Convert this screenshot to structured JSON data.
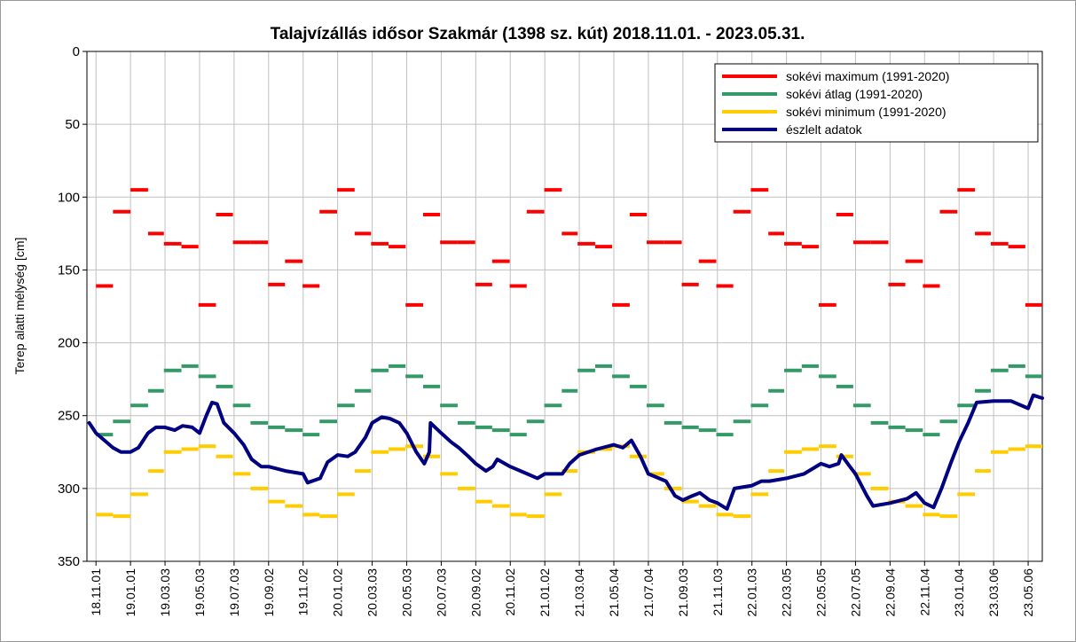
{
  "chart_data": {
    "type": "line",
    "title": "Talajvízállás idősor Szakmár (1398 sz. kút) 2018.11.01. - 2023.05.31.",
    "y_label": "Terep alatti mélység [cm]",
    "ylim": [
      0,
      350
    ],
    "yticks": [
      0,
      50,
      100,
      150,
      200,
      250,
      300,
      350
    ],
    "y_inverted": true,
    "xlim": [
      "18.10.16",
      "23.05.31"
    ],
    "xticks": [
      "18.11.01",
      "19.01.01",
      "19.03.03",
      "19.05.03",
      "19.07.03",
      "19.09.02",
      "19.11.02",
      "20.01.02",
      "20.03.03",
      "20.05.03",
      "20.07.03",
      "20.09.02",
      "20.11.02",
      "21.01.02",
      "21.03.04",
      "21.05.04",
      "21.07.04",
      "21.09.03",
      "21.11.03",
      "22.01.03",
      "22.03.05",
      "22.05.05",
      "22.07.05",
      "22.09.04",
      "22.11.04",
      "23.01.04",
      "23.03.06",
      "23.05.06"
    ],
    "grid": true,
    "legend": "top-right",
    "series": [
      {
        "name": "sokévi maximum (1991-2020)",
        "color": "#ff0000",
        "style": "step",
        "x": [
          "18.11.01",
          "18.12.01",
          "19.01.01",
          "19.02.01",
          "19.03.01",
          "19.04.01",
          "19.05.01",
          "19.06.01",
          "19.07.01",
          "19.08.01",
          "19.09.01",
          "19.10.01",
          "19.11.01",
          "19.12.01",
          "20.01.01",
          "20.02.01",
          "20.03.01",
          "20.04.01",
          "20.05.01",
          "20.06.01",
          "20.07.01",
          "20.08.01",
          "20.09.01",
          "20.10.01",
          "20.11.01",
          "20.12.01",
          "21.01.01",
          "21.02.01",
          "21.03.01",
          "21.04.01",
          "21.05.01",
          "21.06.01",
          "21.07.01",
          "21.08.01",
          "21.09.01",
          "21.10.01",
          "21.11.01",
          "21.12.01",
          "22.01.01",
          "22.02.01",
          "22.03.01",
          "22.04.01",
          "22.05.01",
          "22.06.01",
          "22.07.01",
          "22.08.01",
          "22.09.01",
          "22.10.01",
          "22.11.01",
          "22.12.01",
          "23.01.01",
          "23.02.01",
          "23.03.01",
          "23.04.01",
          "23.05.01"
        ],
        "values": [
          161,
          110,
          95,
          125,
          132,
          134,
          174,
          112,
          131,
          131,
          160,
          144,
          161,
          110,
          95,
          125,
          132,
          134,
          174,
          112,
          131,
          131,
          160,
          144,
          161,
          110,
          95,
          125,
          132,
          134,
          174,
          112,
          131,
          131,
          160,
          144,
          161,
          110,
          95,
          125,
          132,
          134,
          174,
          112,
          131,
          131,
          160,
          144,
          161,
          110,
          95,
          125,
          132,
          134,
          174
        ]
      },
      {
        "name": "sokévi átlag (1991-2020)",
        "color": "#339966",
        "style": "step",
        "x": [
          "18.11.01",
          "18.12.01",
          "19.01.01",
          "19.02.01",
          "19.03.01",
          "19.04.01",
          "19.05.01",
          "19.06.01",
          "19.07.01",
          "19.08.01",
          "19.09.01",
          "19.10.01",
          "19.11.01",
          "19.12.01",
          "20.01.01",
          "20.02.01",
          "20.03.01",
          "20.04.01",
          "20.05.01",
          "20.06.01",
          "20.07.01",
          "20.08.01",
          "20.09.01",
          "20.10.01",
          "20.11.01",
          "20.12.01",
          "21.01.01",
          "21.02.01",
          "21.03.01",
          "21.04.01",
          "21.05.01",
          "21.06.01",
          "21.07.01",
          "21.08.01",
          "21.09.01",
          "21.10.01",
          "21.11.01",
          "21.12.01",
          "22.01.01",
          "22.02.01",
          "22.03.01",
          "22.04.01",
          "22.05.01",
          "22.06.01",
          "22.07.01",
          "22.08.01",
          "22.09.01",
          "22.10.01",
          "22.11.01",
          "22.12.01",
          "23.01.01",
          "23.02.01",
          "23.03.01",
          "23.04.01",
          "23.05.01"
        ],
        "values": [
          263,
          254,
          243,
          233,
          219,
          216,
          223,
          230,
          243,
          255,
          258,
          260,
          263,
          254,
          243,
          233,
          219,
          216,
          223,
          230,
          243,
          255,
          258,
          260,
          263,
          254,
          243,
          233,
          219,
          216,
          223,
          230,
          243,
          255,
          258,
          260,
          263,
          254,
          243,
          233,
          219,
          216,
          223,
          230,
          243,
          255,
          258,
          260,
          263,
          254,
          243,
          233,
          219,
          216,
          223
        ]
      },
      {
        "name": "sokévi minimum (1991-2020)",
        "color": "#ffcc00",
        "style": "step",
        "x": [
          "18.11.01",
          "18.12.01",
          "19.01.01",
          "19.02.01",
          "19.03.01",
          "19.04.01",
          "19.05.01",
          "19.06.01",
          "19.07.01",
          "19.08.01",
          "19.09.01",
          "19.10.01",
          "19.11.01",
          "19.12.01",
          "20.01.01",
          "20.02.01",
          "20.03.01",
          "20.04.01",
          "20.05.01",
          "20.06.01",
          "20.07.01",
          "20.08.01",
          "20.09.01",
          "20.10.01",
          "20.11.01",
          "20.12.01",
          "21.01.01",
          "21.02.01",
          "21.03.01",
          "21.04.01",
          "21.05.01",
          "21.06.01",
          "21.07.01",
          "21.08.01",
          "21.09.01",
          "21.10.01",
          "21.11.01",
          "21.12.01",
          "22.01.01",
          "22.02.01",
          "22.03.01",
          "22.04.01",
          "22.05.01",
          "22.06.01",
          "22.07.01",
          "22.08.01",
          "22.09.01",
          "22.10.01",
          "22.11.01",
          "22.12.01",
          "23.01.01",
          "23.02.01",
          "23.03.01",
          "23.04.01",
          "23.05.01"
        ],
        "values": [
          318,
          319,
          304,
          288,
          275,
          273,
          271,
          278,
          290,
          300,
          309,
          312,
          318,
          319,
          304,
          288,
          275,
          273,
          271,
          278,
          290,
          300,
          309,
          312,
          318,
          319,
          304,
          288,
          275,
          273,
          271,
          278,
          290,
          300,
          309,
          312,
          318,
          319,
          304,
          288,
          275,
          273,
          271,
          278,
          290,
          300,
          309,
          312,
          318,
          319,
          304,
          288,
          275,
          273,
          271
        ]
      },
      {
        "name": "észlelt adatok",
        "color": "#000080",
        "style": "line",
        "x": [
          "18.10.20",
          "18.11.01",
          "18.12.01",
          "18.12.15",
          "19.01.01",
          "19.01.15",
          "19.02.01",
          "19.02.15",
          "19.03.03",
          "19.03.20",
          "19.04.03",
          "19.04.20",
          "19.05.03",
          "19.05.15",
          "19.05.25",
          "19.06.03",
          "19.06.15",
          "19.07.03",
          "19.07.20",
          "19.08.03",
          "19.08.20",
          "19.09.02",
          "19.10.02",
          "19.11.02",
          "19.11.10",
          "19.12.02",
          "19.12.15",
          "20.01.02",
          "20.01.20",
          "20.02.02",
          "20.02.20",
          "20.03.03",
          "20.03.20",
          "20.04.03",
          "20.04.20",
          "20.05.03",
          "20.05.20",
          "20.06.03",
          "20.06.12",
          "20.06.14",
          "20.07.03",
          "20.07.20",
          "20.08.03",
          "20.08.20",
          "20.09.02",
          "20.09.20",
          "20.10.02",
          "20.10.10",
          "20.11.02",
          "20.12.02",
          "20.12.20",
          "21.01.02",
          "21.02.02",
          "21.02.15",
          "21.03.04",
          "21.04.04",
          "21.05.04",
          "21.05.20",
          "21.06.04",
          "21.06.20",
          "21.07.04",
          "21.08.04",
          "21.08.20",
          "21.09.03",
          "21.09.20",
          "21.10.03",
          "21.10.20",
          "21.11.03",
          "21.11.20",
          "21.12.03",
          "22.01.03",
          "22.01.20",
          "22.02.03",
          "22.03.05",
          "22.04.05",
          "22.05.05",
          "22.05.20",
          "22.06.05",
          "22.06.10",
          "22.06.25",
          "22.07.05",
          "22.07.25",
          "22.08.05",
          "22.09.04",
          "22.10.04",
          "22.10.20",
          "22.11.04",
          "22.11.20",
          "22.12.04",
          "22.12.20",
          "23.01.04",
          "23.01.20",
          "23.02.04",
          "23.03.06",
          "23.04.06",
          "23.05.06",
          "23.05.15",
          "23.05.31"
        ],
        "values": [
          255,
          262,
          272,
          275,
          275,
          272,
          262,
          258,
          258,
          260,
          257,
          258,
          262,
          250,
          241,
          242,
          255,
          262,
          270,
          280,
          285,
          285,
          288,
          290,
          296,
          293,
          282,
          277,
          278,
          275,
          265,
          255,
          251,
          252,
          255,
          262,
          275,
          283,
          275,
          255,
          262,
          268,
          272,
          278,
          283,
          288,
          285,
          280,
          285,
          290,
          293,
          290,
          290,
          283,
          277,
          273,
          270,
          272,
          267,
          278,
          290,
          295,
          305,
          308,
          305,
          303,
          308,
          310,
          314,
          300,
          298,
          295,
          295,
          293,
          290,
          283,
          285,
          283,
          277,
          285,
          290,
          305,
          312,
          310,
          307,
          303,
          310,
          313,
          300,
          283,
          268,
          255,
          241,
          240,
          240,
          245,
          236,
          238
        ]
      }
    ]
  }
}
